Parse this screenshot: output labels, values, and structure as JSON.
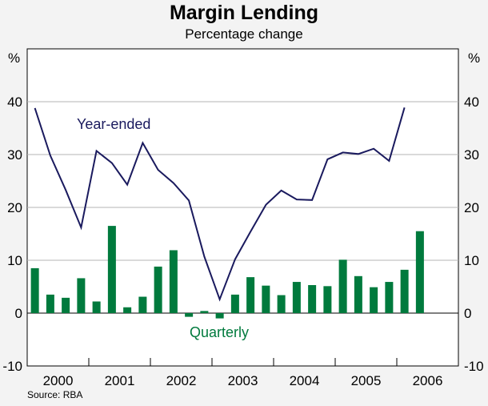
{
  "chart_data": {
    "type": "bar+line",
    "title": "Margin Lending",
    "subtitle": "Percentage change",
    "ylabel_left": "%",
    "ylabel_right": "%",
    "ylim": [
      -10,
      50
    ],
    "yticks": [
      -10,
      0,
      10,
      20,
      30,
      40
    ],
    "year_labels": [
      "2000",
      "2001",
      "2002",
      "2003",
      "2004",
      "2005",
      "2006"
    ],
    "quarters": [
      "Mar 2000",
      "Jun 2000",
      "Sep 2000",
      "Dec 2000",
      "Mar 2001",
      "Jun 2001",
      "Sep 2001",
      "Dec 2001",
      "Mar 2002",
      "Jun 2002",
      "Sep 2002",
      "Dec 2002",
      "Mar 2003",
      "Jun 2003",
      "Sep 2003",
      "Dec 2003",
      "Mar 2004",
      "Jun 2004",
      "Sep 2004",
      "Dec 2004",
      "Mar 2005",
      "Jun 2005",
      "Sep 2005",
      "Dec 2005",
      "Mar 2006",
      "Jun 2006"
    ],
    "series": [
      {
        "name": "Year-ended",
        "type": "line",
        "color": "#1a1a5e",
        "values": [
          38.8,
          29.8,
          23.3,
          16.2,
          30.7,
          28.4,
          24.3,
          32.2,
          27.1,
          24.6,
          21.3,
          10.7,
          2.6,
          10.2,
          15.4,
          20.5,
          23.2,
          21.5,
          21.4,
          29.1,
          30.4,
          30.1,
          31.1,
          28.8,
          38.9,
          null
        ]
      },
      {
        "name": "Quarterly",
        "type": "bar",
        "color": "#007a3d",
        "values": [
          8.5,
          3.5,
          2.9,
          6.6,
          2.2,
          16.5,
          1.1,
          3.1,
          8.8,
          11.9,
          -0.7,
          0.4,
          -1.0,
          3.5,
          6.8,
          5.2,
          3.4,
          5.9,
          5.3,
          5.1,
          10.1,
          7.0,
          4.9,
          5.9,
          8.2,
          15.5
        ]
      }
    ],
    "annotations": [
      "Year-ended",
      "Quarterly"
    ],
    "grid": true
  },
  "source": "Source: RBA"
}
